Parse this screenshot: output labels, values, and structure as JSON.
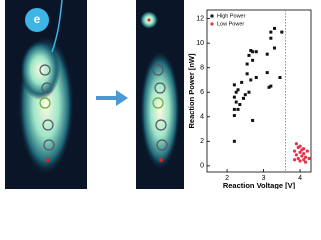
{
  "figure": {
    "electron_label": "e"
  },
  "chart_data": {
    "type": "scatter",
    "x_label": "Reaction Voltage [V]",
    "y_label": "Reaction Power [nW]",
    "xlim": [
      1.45,
      4.3
    ],
    "xticks": [
      2,
      3,
      4
    ],
    "ylim": [
      -0.5,
      12.7
    ],
    "yticks": [
      0,
      2,
      4,
      6,
      8,
      10,
      12
    ],
    "vline": 3.6,
    "legend": "top-left",
    "series": [
      {
        "name": "High Power",
        "color": "#111111",
        "marker": "square",
        "x": [
          2.2,
          2.2,
          2.2,
          2.25,
          2.2,
          2.25,
          2.2,
          2.3,
          2.3,
          2.4,
          2.45,
          2.5,
          2.6,
          2.55,
          2.6,
          2.65,
          2.7,
          2.7,
          2.8,
          2.8,
          2.65,
          2.55,
          2.7,
          3.1,
          3.1,
          3.15,
          3.2,
          3.2,
          3.3,
          3.3,
          3.45,
          3.5,
          3.2,
          2.35
        ],
        "values": [
          2.0,
          4.1,
          4.6,
          5.2,
          5.6,
          6.0,
          6.6,
          6.2,
          4.6,
          6.8,
          5.5,
          5.8,
          6.0,
          8.3,
          9.0,
          9.4,
          8.6,
          9.3,
          9.3,
          7.2,
          7.0,
          7.5,
          3.7,
          9.1,
          7.6,
          6.4,
          10.4,
          10.9,
          11.2,
          9.6,
          7.2,
          10.9,
          6.5,
          5.0
        ]
      },
      {
        "name": "Low Power",
        "color": "#e8324a",
        "marker": "circle",
        "x": [
          3.85,
          3.9,
          3.95,
          3.95,
          4.0,
          4.0,
          4.05,
          4.05,
          4.1,
          4.1,
          4.15,
          4.15,
          4.2,
          3.9,
          4.0,
          4.25,
          3.85,
          4.1
        ],
        "values": [
          1.2,
          0.9,
          1.5,
          0.6,
          1.1,
          0.4,
          1.3,
          0.8,
          0.5,
          1.0,
          0.3,
          0.7,
          1.2,
          1.8,
          1.6,
          0.6,
          0.5,
          1.4
        ]
      }
    ]
  }
}
